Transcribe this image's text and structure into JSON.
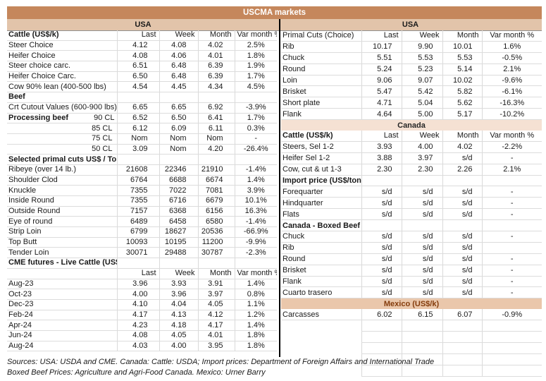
{
  "title": "USCMA markets",
  "bands": {
    "usa_left": "USA",
    "usa_right": "USA"
  },
  "colors": {
    "title_bg": "#C5875C",
    "usa_band_bg": "#E2C4AA",
    "canada_band_bg": "#F5E1D3",
    "mexico_band_bg": "#EAC7AB",
    "mexico_band_text": "#843C0C",
    "title_text": "#FFFFFF"
  },
  "columns": [
    "Last",
    "Week",
    "Month",
    "Var month %"
  ],
  "left_table": {
    "rows": [
      {
        "t": "header",
        "label": "Cattle (US$/k)",
        "bold": true,
        "cols": [
          "Last",
          "Week",
          "Month",
          "Var month %"
        ]
      },
      {
        "t": "row",
        "label": "Steer Choice",
        "v": [
          "4.12",
          "4.08",
          "4.02",
          "2.5%"
        ]
      },
      {
        "t": "row",
        "label": "Heifer Choice",
        "v": [
          "4.08",
          "4.06",
          "4.01",
          "1.8%"
        ]
      },
      {
        "t": "row",
        "label": "Steer choice carc.",
        "v": [
          "6.51",
          "6.48",
          "6.39",
          "1.9%"
        ]
      },
      {
        "t": "row",
        "label": "Heifer Choice Carc.",
        "v": [
          "6.50",
          "6.48",
          "6.39",
          "1.7%"
        ]
      },
      {
        "t": "row",
        "label": "Cow 90% lean (400-500 lbs)",
        "v": [
          "4.54",
          "4.45",
          "4.34",
          "4.5%"
        ]
      },
      {
        "t": "section",
        "label": "Beef"
      },
      {
        "t": "row",
        "label": "Crt Cutout Values (600-900 lbs)",
        "v": [
          "6.65",
          "6.65",
          "6.92",
          "-3.9%"
        ]
      },
      {
        "t": "split",
        "label": "Processing beef",
        "sub": "90 CL",
        "v": [
          "6.52",
          "6.50",
          "6.41",
          "1.7%"
        ]
      },
      {
        "t": "rowr",
        "label": "85 CL",
        "v": [
          "6.12",
          "6.09",
          "6.11",
          "0.3%"
        ]
      },
      {
        "t": "rowr",
        "label": "75 CL",
        "v": [
          "Nom",
          "Nom",
          "Nom",
          "-"
        ]
      },
      {
        "t": "rowr",
        "label": "50 CL",
        "v": [
          "3.09",
          "Nom",
          "4.20",
          "-26.4%"
        ]
      },
      {
        "t": "section",
        "label": "Selected primal cuts US$ / Ton"
      },
      {
        "t": "row",
        "label": "Ribeye (over 14 lb.)",
        "v": [
          "21608",
          "22346",
          "21910",
          "-1.4%"
        ]
      },
      {
        "t": "row",
        "label": "Shoulder Clod",
        "v": [
          "6764",
          "6688",
          "6674",
          "1.4%"
        ]
      },
      {
        "t": "row",
        "label": "Knuckle",
        "v": [
          "7355",
          "7022",
          "7081",
          "3.9%"
        ]
      },
      {
        "t": "row",
        "label": "Inside Round",
        "v": [
          "7355",
          "6716",
          "6679",
          "10.1%"
        ]
      },
      {
        "t": "row",
        "label": "Outside Round",
        "v": [
          "7157",
          "6368",
          "6156",
          "16.3%"
        ]
      },
      {
        "t": "row",
        "label": "Eye of round",
        "v": [
          "6489",
          "6458",
          "6580",
          "-1.4%"
        ]
      },
      {
        "t": "row",
        "label": "Strip Loin",
        "v": [
          "6799",
          "18627",
          "20536",
          "-66.9%"
        ]
      },
      {
        "t": "row",
        "label": "Top Butt",
        "v": [
          "10093",
          "10195",
          "11200",
          "-9.9%"
        ]
      },
      {
        "t": "row",
        "label": "Tender Loin",
        "v": [
          "30071",
          "29488",
          "30787",
          "-2.3%"
        ]
      },
      {
        "t": "section",
        "label": "CME futures - Live Cattle (US$/k)",
        "cls": "cmetop"
      },
      {
        "t": "subheader",
        "cols": [
          "Last",
          "Week",
          "Month",
          "Var month %"
        ]
      },
      {
        "t": "row",
        "label": "Aug-23",
        "v": [
          "3.96",
          "3.93",
          "3.91",
          "1.4%"
        ]
      },
      {
        "t": "row",
        "label": "Oct-23",
        "v": [
          "4.00",
          "3.96",
          "3.97",
          "0.8%"
        ]
      },
      {
        "t": "row",
        "label": "Dec-23",
        "v": [
          "4.10",
          "4.04",
          "4.05",
          "1.1%"
        ]
      },
      {
        "t": "row",
        "label": "Feb-24",
        "v": [
          "4.17",
          "4.13",
          "4.12",
          "1.2%"
        ]
      },
      {
        "t": "row",
        "label": "Apr-24",
        "v": [
          "4.23",
          "4.18",
          "4.17",
          "1.4%"
        ]
      },
      {
        "t": "row",
        "label": "Jun-24",
        "v": [
          "4.08",
          "4.05",
          "4.01",
          "1.8%"
        ]
      },
      {
        "t": "row",
        "label": "Aug-24",
        "v": [
          "4.03",
          "4.00",
          "3.95",
          "1.8%"
        ]
      }
    ]
  },
  "right_table": {
    "rows": [
      {
        "t": "header",
        "label": "Primal Cuts (Choice)",
        "bold": false,
        "cols": [
          "Last",
          "Week",
          "Month",
          "Var month %"
        ]
      },
      {
        "t": "row",
        "label": "Rib",
        "v": [
          "10.17",
          "9.90",
          "10.01",
          "1.6%"
        ]
      },
      {
        "t": "row",
        "label": "Chuck",
        "v": [
          "5.51",
          "5.53",
          "5.53",
          "-0.5%"
        ]
      },
      {
        "t": "row",
        "label": "Round",
        "v": [
          "5.24",
          "5.23",
          "5.14",
          "2.1%"
        ]
      },
      {
        "t": "row",
        "label": "Loin",
        "v": [
          "9.06",
          "9.07",
          "10.02",
          "-9.6%"
        ]
      },
      {
        "t": "row",
        "label": "Brisket",
        "v": [
          "5.47",
          "5.42",
          "5.82",
          "-6.1%"
        ]
      },
      {
        "t": "row",
        "label": "Short plate",
        "v": [
          "4.71",
          "5.04",
          "5.62",
          "-16.3%"
        ]
      },
      {
        "t": "row",
        "label": "Flank",
        "v": [
          "4.64",
          "5.00",
          "5.17",
          "-10.2%"
        ]
      },
      {
        "t": "band",
        "label": "Canada",
        "style": "canada"
      },
      {
        "t": "header",
        "label": "Cattle (US$/k)",
        "bold": true,
        "cols": [
          "Last",
          "Week",
          "Month",
          "Var month %"
        ]
      },
      {
        "t": "row",
        "label": "Steers, Sel 1-2",
        "v": [
          "3.93",
          "4.00",
          "4.02",
          "-2.2%"
        ]
      },
      {
        "t": "row",
        "label": "Heifer Sel 1-2",
        "v": [
          "3.88",
          "3.97",
          "s/d",
          "-"
        ]
      },
      {
        "t": "row",
        "label": "Cow, cut & ut 1-3",
        "v": [
          "2.30",
          "2.30",
          "2.26",
          "2.1%"
        ]
      },
      {
        "t": "section",
        "label": "Import price (US$/ton, frozen, boneless )"
      },
      {
        "t": "row",
        "label": "Forequarter",
        "v": [
          "s/d",
          "s/d",
          "s/d",
          "-"
        ]
      },
      {
        "t": "row",
        "label": "Hindquarter",
        "v": [
          "s/d",
          "s/d",
          "s/d",
          "-"
        ]
      },
      {
        "t": "row",
        "label": "Flats",
        "v": [
          "s/d",
          "s/d",
          "s/d",
          "-"
        ]
      },
      {
        "t": "section",
        "label": "Canada - Boxed Beef Prices (US$/k)"
      },
      {
        "t": "row",
        "label": "Chuck",
        "v": [
          "s/d",
          "s/d",
          "s/d",
          "-"
        ]
      },
      {
        "t": "row",
        "label": "Rib",
        "v": [
          "s/d",
          "s/d",
          "s/d",
          ""
        ]
      },
      {
        "t": "row",
        "label": "Round",
        "v": [
          "s/d",
          "s/d",
          "s/d",
          "-"
        ]
      },
      {
        "t": "row",
        "label": "Brisket",
        "v": [
          "s/d",
          "s/d",
          "s/d",
          "-"
        ]
      },
      {
        "t": "row",
        "label": "Flank",
        "v": [
          "s/d",
          "s/d",
          "s/d",
          "-"
        ]
      },
      {
        "t": "row",
        "label": "Cuarto trasero",
        "v": [
          "s/d",
          "s/d",
          "s/d",
          "-"
        ]
      },
      {
        "t": "band",
        "label": "Mexico (US$/k)",
        "style": "mexico"
      },
      {
        "t": "row",
        "label": "Carcasses",
        "v": [
          "6.02",
          "6.15",
          "6.07",
          "-0.9%"
        ]
      },
      {
        "t": "empty"
      },
      {
        "t": "empty"
      },
      {
        "t": "empty"
      },
      {
        "t": "empty"
      },
      {
        "t": "empty"
      }
    ]
  },
  "footer": {
    "line1": "Sources: USA: USDA and CME. Canada: Cattle: USDA; Import prices: Department of Foreign Affairs and International Trade",
    "line2": "Boxed Beef Prices: Agriculture and Agri-Food Canada. Mexico: Urner Barry"
  }
}
